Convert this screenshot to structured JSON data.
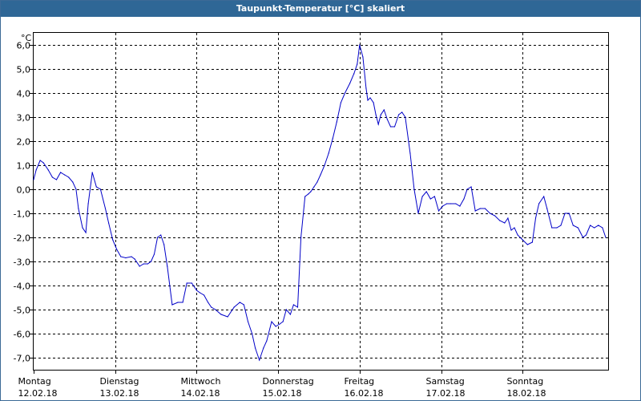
{
  "window": {
    "title": "Taupunkt-Temperatur [°C] skaliert"
  },
  "colors": {
    "titlebar": "#2f6796",
    "line": "#0000c8",
    "grid": "#000000"
  },
  "chart_data": {
    "type": "line",
    "title": "Taupunkt-Temperatur [°C] skaliert",
    "unit_label": "°C",
    "ylim": [
      -7.5,
      6.5
    ],
    "y_ticks": [
      6.0,
      5.0,
      4.0,
      3.0,
      2.0,
      1.0,
      0.0,
      -1.0,
      -2.0,
      -3.0,
      -4.0,
      -5.0,
      -6.0,
      -7.0
    ],
    "y_tick_labels": [
      "6,0",
      "5,0",
      "4,0",
      "3,0",
      "2,0",
      "1,0",
      "0,0",
      "-1,0",
      "-2,0",
      "-3,0",
      "-4,0",
      "-5,0",
      "-6,0",
      "-7,0"
    ],
    "xlim": [
      0,
      7.05
    ],
    "grid": true,
    "days": [
      {
        "day": "Montag",
        "date": "12.02.18"
      },
      {
        "day": "Dienstag",
        "date": "13.02.18"
      },
      {
        "day": "Mittwoch",
        "date": "14.02.18"
      },
      {
        "day": "Donnerstag",
        "date": "15.02.18"
      },
      {
        "day": "Freitag",
        "date": "16.02.18"
      },
      {
        "day": "Samstag",
        "date": "17.02.18"
      },
      {
        "day": "Sonntag",
        "date": "18.02.18"
      }
    ],
    "series": [
      {
        "x": [
          0,
          0.03,
          0.08,
          0.12,
          0.18,
          0.23,
          0.28,
          0.33,
          0.38,
          0.43,
          0.48,
          0.52,
          0.55,
          0.6,
          0.64,
          0.67,
          0.72,
          0.77,
          0.82,
          0.88,
          0.92,
          0.97,
          1.02,
          1.07,
          1.13,
          1.2,
          1.24,
          1.3,
          1.35,
          1.4,
          1.44,
          1.48,
          1.52,
          1.56,
          1.6,
          1.64,
          1.7,
          1.77,
          1.83,
          1.88,
          1.94,
          2.0,
          2.04,
          2.09,
          2.14,
          2.18,
          2.23,
          2.3,
          2.38,
          2.46,
          2.53,
          2.58,
          2.63,
          2.68,
          2.72,
          2.77,
          2.82,
          2.86,
          2.92,
          2.97,
          3.02,
          3.06,
          3.1,
          3.15,
          3.19,
          3.24,
          3.28,
          3.33,
          3.37,
          3.4,
          3.44,
          3.48,
          3.52,
          3.57,
          3.62,
          3.67,
          3.72,
          3.77,
          3.82,
          3.88,
          3.93,
          3.97,
          4.0,
          4.04,
          4.08,
          4.1,
          4.13,
          4.17,
          4.2,
          4.23,
          4.26,
          4.3,
          4.34,
          4.38,
          4.43,
          4.48,
          4.52,
          4.56,
          4.62,
          4.67,
          4.72,
          4.77,
          4.82,
          4.87,
          4.92,
          4.97,
          5.02,
          5.07,
          5.12,
          5.18,
          5.23,
          5.28,
          5.32,
          5.37,
          5.42,
          5.48,
          5.54,
          5.6,
          5.66,
          5.72,
          5.78,
          5.82,
          5.86,
          5.9,
          5.94,
          6.0,
          6.06,
          6.12,
          6.16,
          6.2,
          6.26,
          6.3,
          6.36,
          6.42,
          6.47,
          6.52,
          6.57,
          6.62,
          6.68,
          6.74,
          6.78,
          6.83,
          6.88,
          6.93,
          6.98,
          7.02
        ],
        "values": [
          0.4,
          0.8,
          1.2,
          1.1,
          0.8,
          0.5,
          0.4,
          0.7,
          0.6,
          0.5,
          0.3,
          0.0,
          -0.8,
          -1.6,
          -1.8,
          -0.6,
          0.7,
          0.1,
          0.0,
          -0.8,
          -1.4,
          -2.1,
          -2.5,
          -2.8,
          -2.85,
          -2.8,
          -2.9,
          -3.2,
          -3.1,
          -3.1,
          -3.0,
          -2.7,
          -2.0,
          -1.9,
          -2.3,
          -3.2,
          -4.8,
          -4.7,
          -4.7,
          -3.9,
          -3.9,
          -4.2,
          -4.3,
          -4.4,
          -4.7,
          -4.9,
          -5.0,
          -5.2,
          -5.3,
          -4.9,
          -4.7,
          -4.8,
          -5.5,
          -6.0,
          -6.6,
          -7.1,
          -6.6,
          -6.3,
          -5.5,
          -5.7,
          -5.6,
          -5.5,
          -5.0,
          -5.2,
          -4.8,
          -4.9,
          -2.0,
          -0.3,
          -0.2,
          -0.1,
          0.1,
          0.3,
          0.6,
          1.0,
          1.5,
          2.1,
          2.8,
          3.6,
          4.0,
          4.4,
          4.8,
          5.2,
          6.0,
          5.5,
          4.2,
          3.7,
          3.8,
          3.6,
          3.1,
          2.7,
          3.1,
          3.3,
          2.9,
          2.6,
          2.6,
          3.1,
          3.2,
          3.0,
          1.5,
          0.0,
          -1.0,
          -0.3,
          -0.1,
          -0.4,
          -0.3,
          -0.9,
          -0.7,
          -0.6,
          -0.6,
          -0.6,
          -0.7,
          -0.4,
          0.0,
          0.1,
          -0.9,
          -0.8,
          -0.8,
          -1.0,
          -1.1,
          -1.3,
          -1.4,
          -1.2,
          -1.7,
          -1.6,
          -1.9,
          -2.1,
          -2.3,
          -2.2,
          -1.2,
          -0.6,
          -0.3,
          -0.8,
          -1.6,
          -1.6,
          -1.5,
          -1.0,
          -1.0,
          -1.5,
          -1.6,
          -2.0,
          -1.9,
          -1.5,
          -1.6,
          -1.5,
          -1.6,
          -2.0
        ]
      }
    ]
  }
}
